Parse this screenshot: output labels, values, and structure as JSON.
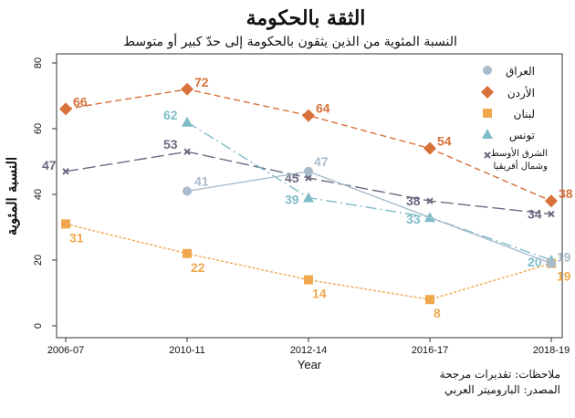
{
  "chart_data": {
    "type": "line",
    "title": "الثقة بالحكومة",
    "subtitle": "النسبة المئوية من الذين يثقون بالحكومة إلى حدّ كبير أو متوسط",
    "xlabel": "Year",
    "ylabel": "النسبة المئوية",
    "categories": [
      "2006-07",
      "2010-11",
      "2012-14",
      "2016-17",
      "2018-19"
    ],
    "ylim": [
      0,
      80
    ],
    "yticks": [
      0,
      20,
      40,
      60,
      80
    ],
    "grid": false,
    "legend_position": "top-right",
    "series": [
      {
        "name": "العراق",
        "color": "#a9bccc",
        "marker": "circle",
        "dash": "solid",
        "values": [
          null,
          41,
          47,
          null,
          19
        ]
      },
      {
        "name": "الأردن",
        "color": "#d9713a",
        "marker": "diamond",
        "dash": "dashed",
        "values": [
          66,
          72,
          64,
          54,
          38
        ]
      },
      {
        "name": "لبنان",
        "color": "#f0a84e",
        "marker": "square",
        "dash": "dotted",
        "values": [
          31,
          22,
          14,
          8,
          19
        ]
      },
      {
        "name": "تونس",
        "color": "#7fbcc8",
        "marker": "triangle",
        "dash": "dashdot",
        "values": [
          null,
          62,
          39,
          33,
          20
        ]
      },
      {
        "name": "الشرق الأوسط وشمال أفريقيا",
        "name_lines": [
          "الشرق الأوسط",
          "وشمال أفريقيا"
        ],
        "color": "#6a6a82",
        "marker": "x",
        "dash": "longdash",
        "values": [
          47,
          53,
          45,
          38,
          34
        ]
      }
    ]
  },
  "notes": {
    "estimates": "ملاحظات: تقديرات مرجحة",
    "source": "المصدر: الباروميتر العربي"
  }
}
